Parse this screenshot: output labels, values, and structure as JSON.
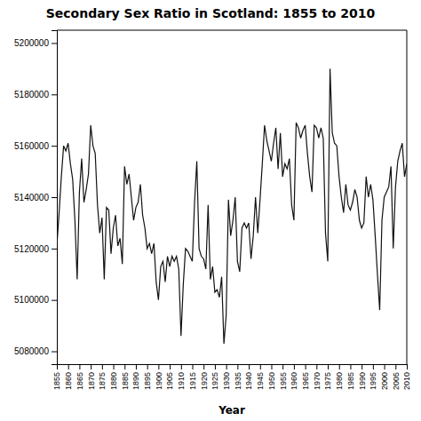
{
  "chart_data": {
    "type": "line",
    "title": "Secondary Sex Ratio in Scotland: 1855 to 2010",
    "xlabel": "Year",
    "color": "#111111",
    "grid": false,
    "xlim": [
      1855,
      2010
    ],
    "xticks": [
      1855,
      1860,
      1865,
      1870,
      1875,
      1880,
      1885,
      1890,
      1895,
      1900,
      1905,
      1910,
      1915,
      1920,
      1925,
      1930,
      1935,
      1940,
      1945,
      1950,
      1955,
      1960,
      1965,
      1970,
      1975,
      1980,
      1985,
      1990,
      1995,
      2000,
      2005,
      2010
    ],
    "ylim": [
      5075000,
      5205000
    ],
    "yticks": [
      5080000,
      5100000,
      5120000,
      5140000,
      5160000,
      5180000,
      5200000
    ],
    "x": [
      1855,
      1856,
      1857,
      1858,
      1859,
      1860,
      1861,
      1862,
      1863,
      1864,
      1865,
      1866,
      1867,
      1868,
      1869,
      1870,
      1871,
      1872,
      1873,
      1874,
      1875,
      1876,
      1877,
      1878,
      1879,
      1880,
      1881,
      1882,
      1883,
      1884,
      1885,
      1886,
      1887,
      1888,
      1889,
      1890,
      1891,
      1892,
      1893,
      1894,
      1895,
      1896,
      1897,
      1898,
      1899,
      1900,
      1901,
      1902,
      1903,
      1904,
      1905,
      1906,
      1907,
      1908,
      1909,
      1910,
      1911,
      1912,
      1913,
      1914,
      1915,
      1916,
      1917,
      1918,
      1919,
      1920,
      1921,
      1922,
      1923,
      1924,
      1925,
      1926,
      1927,
      1928,
      1929,
      1930,
      1931,
      1932,
      1933,
      1934,
      1935,
      1936,
      1937,
      1938,
      1939,
      1940,
      1941,
      1942,
      1943,
      1944,
      1945,
      1946,
      1947,
      1948,
      1949,
      1950,
      1951,
      1952,
      1953,
      1954,
      1955,
      1956,
      1957,
      1958,
      1959,
      1960,
      1961,
      1962,
      1963,
      1964,
      1965,
      1966,
      1967,
      1968,
      1969,
      1970,
      1971,
      1972,
      1973,
      1974,
      1975,
      1976,
      1977,
      1978,
      1979,
      1980,
      1981,
      1982,
      1983,
      1984,
      1985,
      1986,
      1987,
      1988,
      1989,
      1990,
      1991,
      1992,
      1993,
      1994,
      1995,
      1996,
      1997,
      1998,
      1999,
      2000,
      2001,
      2002,
      2003,
      2004,
      2005,
      2006,
      2007,
      2008,
      2009,
      2010
    ],
    "values": [
      5121000,
      5134000,
      5148000,
      5160000,
      5158000,
      5161000,
      5153000,
      5147000,
      5131000,
      5108000,
      5142000,
      5155000,
      5138000,
      5143000,
      5149000,
      5168000,
      5160000,
      5157000,
      5137000,
      5126000,
      5132000,
      5108000,
      5136000,
      5135000,
      5118000,
      5128000,
      5133000,
      5121000,
      5124000,
      5114000,
      5152000,
      5145000,
      5149000,
      5140000,
      5131000,
      5136000,
      5138000,
      5145000,
      5133000,
      5128000,
      5120000,
      5122000,
      5118000,
      5122000,
      5107000,
      5100000,
      5113000,
      5115000,
      5107000,
      5117000,
      5113000,
      5117000,
      5115000,
      5117000,
      5112000,
      5086000,
      5106000,
      5120000,
      5119000,
      5117000,
      5115000,
      5138000,
      5154000,
      5120000,
      5117000,
      5116000,
      5112000,
      5137000,
      5108000,
      5113000,
      5103000,
      5104000,
      5101000,
      5109000,
      5083000,
      5094000,
      5139000,
      5125000,
      5131000,
      5140000,
      5115000,
      5111000,
      5128000,
      5130000,
      5128000,
      5130000,
      5116000,
      5125000,
      5140000,
      5126000,
      5139000,
      5153000,
      5168000,
      5162000,
      5158000,
      5154000,
      5161000,
      5167000,
      5151000,
      5165000,
      5148000,
      5153000,
      5151000,
      5155000,
      5137000,
      5131000,
      5169000,
      5167000,
      5163000,
      5166000,
      5168000,
      5157000,
      5148000,
      5142000,
      5168000,
      5167000,
      5163000,
      5167000,
      5163000,
      5126000,
      5115000,
      5190000,
      5165000,
      5161000,
      5160000,
      5148000,
      5140000,
      5134000,
      5145000,
      5137000,
      5135000,
      5138000,
      5143000,
      5140000,
      5131000,
      5128000,
      5130000,
      5148000,
      5140000,
      5145000,
      5139000,
      5125000,
      5110000,
      5096000,
      5131000,
      5140000,
      5142000,
      5144000,
      5152000,
      5120000,
      5144000,
      5154000,
      5158000,
      5161000,
      5148000,
      5153000
    ]
  }
}
